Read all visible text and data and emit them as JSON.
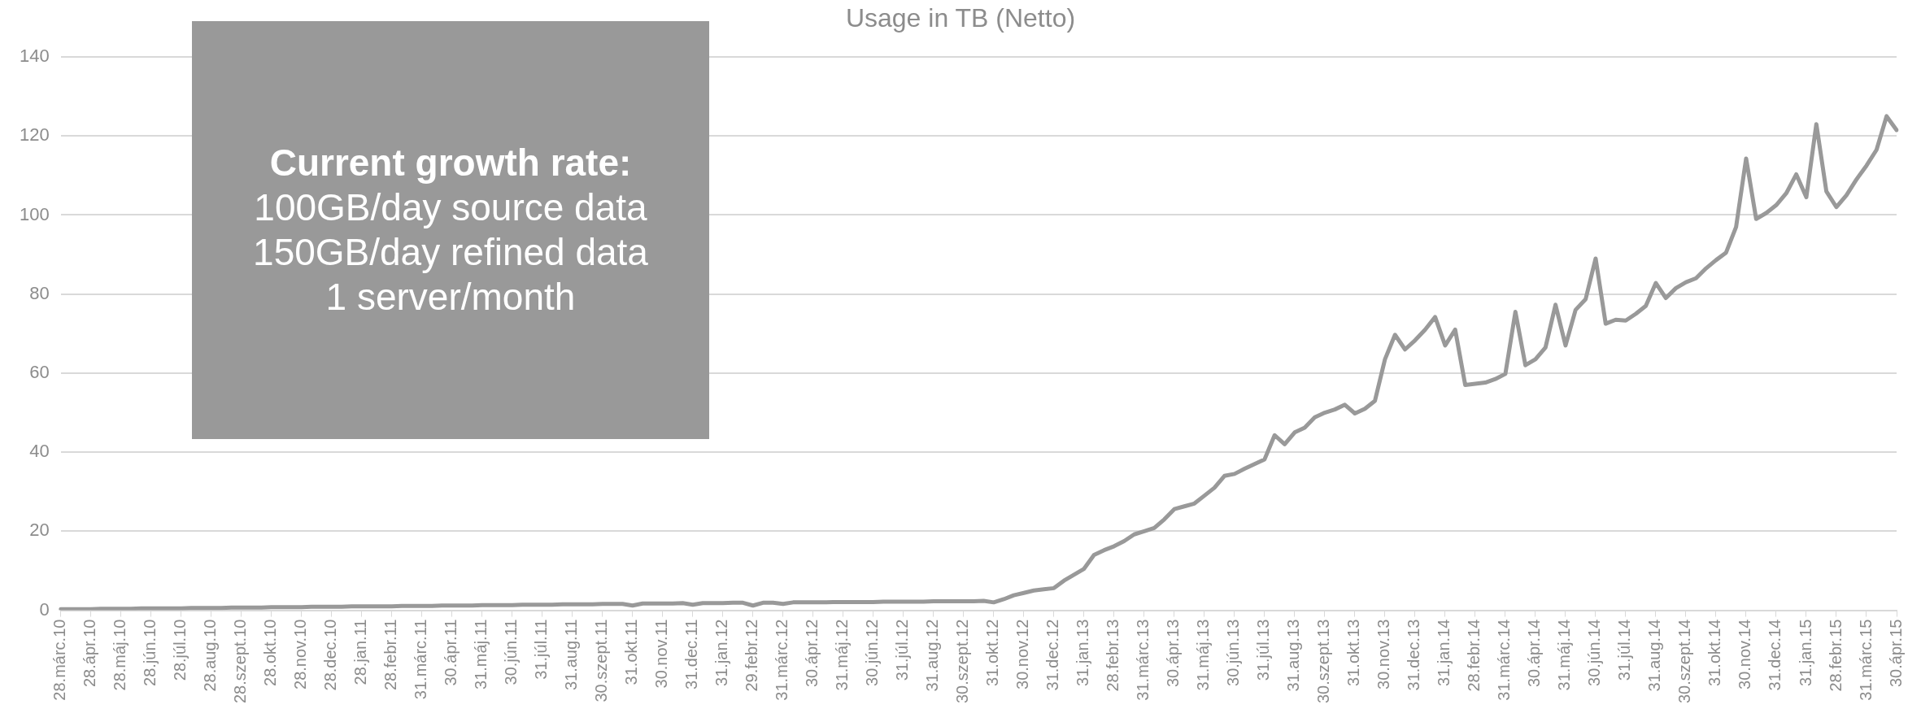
{
  "chart_data": {
    "type": "line",
    "title": "Usage in TB (Netto)",
    "categories": [
      "28.márc.10",
      null,
      null,
      "28.ápr.10",
      null,
      null,
      "28.máj.10",
      null,
      null,
      "28.jún.10",
      null,
      null,
      "28.júl.10",
      null,
      null,
      "28.aug.10",
      null,
      null,
      "28.szept.10",
      null,
      null,
      "28.okt.10",
      null,
      null,
      "28.nov.10",
      null,
      null,
      "28.dec.10",
      null,
      null,
      "28.jan.11",
      null,
      null,
      "28.febr.11",
      null,
      null,
      "31.márc.11",
      null,
      null,
      "30.ápr.11",
      null,
      null,
      "31.máj.11",
      null,
      null,
      "30.jún.11",
      null,
      null,
      "31.júl.11",
      null,
      null,
      "31.aug.11",
      null,
      null,
      "30.szept.11",
      null,
      null,
      "31.okt.11",
      null,
      null,
      "30.nov.11",
      null,
      null,
      "31.dec.11",
      null,
      null,
      "31.jan.12",
      null,
      null,
      "29.febr.12",
      null,
      null,
      "31.márc.12",
      null,
      null,
      "30.ápr.12",
      null,
      null,
      "31.máj.12",
      null,
      null,
      "30.jún.12",
      null,
      null,
      "31.júl.12",
      null,
      null,
      "31.aug.12",
      null,
      null,
      "30.szept.12",
      null,
      null,
      "31.okt.12",
      null,
      null,
      "30.nov.12",
      null,
      null,
      "31.dec.12",
      null,
      null,
      "31.jan.13",
      null,
      null,
      "28.febr.13",
      null,
      null,
      "31.márc.13",
      null,
      null,
      "30.ápr.13",
      null,
      null,
      "31.máj.13",
      null,
      null,
      "30.jún.13",
      null,
      null,
      "31.júl.13",
      null,
      null,
      "31.aug.13",
      null,
      null,
      "30.szept.13",
      null,
      null,
      "31.okt.13",
      null,
      null,
      "30.nov.13",
      null,
      null,
      "31.dec.13",
      null,
      null,
      "31.jan.14",
      null,
      null,
      "28.febr.14",
      null,
      null,
      "31.márc.14",
      null,
      null,
      "30.ápr.14",
      null,
      null,
      "31.máj.14",
      null,
      null,
      "30.jún.14",
      null,
      null,
      "31.júl.14",
      null,
      null,
      "31.aug.14",
      null,
      null,
      "30.szept.14",
      null,
      null,
      "31.okt.14",
      null,
      null,
      "30.nov.14",
      null,
      null,
      "31.dec.14",
      null,
      null,
      "31.jan.15",
      null,
      null,
      "28.febr.15",
      null,
      null,
      "31.márc.15",
      null,
      null,
      "30.ápr.15"
    ],
    "series": [
      {
        "color": "#999999",
        "values": [
          0.3,
          0.3,
          0.3,
          0.3,
          0.4,
          0.4,
          0.4,
          0.4,
          0.5,
          0.5,
          0.5,
          0.5,
          0.5,
          0.6,
          0.6,
          0.6,
          0.6,
          0.7,
          0.7,
          0.7,
          0.7,
          0.8,
          0.8,
          0.8,
          0.8,
          0.9,
          0.9,
          0.9,
          0.9,
          1.0,
          1.0,
          1.0,
          1.0,
          1.0,
          1.1,
          1.1,
          1.1,
          1.1,
          1.2,
          1.2,
          1.2,
          1.2,
          1.3,
          1.3,
          1.3,
          1.3,
          1.4,
          1.4,
          1.4,
          1.4,
          1.5,
          1.5,
          1.5,
          1.5,
          1.6,
          1.6,
          1.6,
          1.2,
          1.7,
          1.7,
          1.7,
          1.7,
          1.8,
          1.4,
          1.8,
          1.8,
          1.8,
          1.9,
          1.9,
          1.2,
          1.9,
          1.9,
          1.6,
          2.0,
          2.0,
          2.0,
          2.0,
          2.1,
          2.1,
          2.1,
          2.1,
          2.1,
          2.2,
          2.2,
          2.2,
          2.2,
          2.2,
          2.3,
          2.3,
          2.3,
          2.3,
          2.3,
          2.4,
          2.0,
          2.8,
          3.8,
          4.4,
          5.0,
          5.3,
          5.6,
          7.5,
          9.0,
          10.5,
          14,
          15.2,
          16.2,
          17.5,
          19.2,
          20,
          20.8,
          23,
          25.6,
          26.3,
          27,
          29,
          31,
          34,
          34.5,
          35.8,
          37,
          38.2,
          44.3,
          42,
          45,
          46.2,
          48.8,
          50,
          50.8,
          52,
          49.8,
          51,
          53,
          63.5,
          69.7,
          66,
          68.3,
          71,
          74.2,
          67,
          71,
          57,
          57.3,
          57.6,
          58.5,
          59.8,
          75.5,
          62,
          63.5,
          66.5,
          77.3,
          67,
          76,
          78.7,
          89,
          72.5,
          73.5,
          73.3,
          75,
          77,
          82.8,
          79,
          81.5,
          83,
          84,
          86.5,
          88.6,
          90.5,
          97,
          114.3,
          99,
          100.5,
          102.5,
          105.5,
          110.3,
          104.5,
          123,
          106,
          102,
          105,
          109,
          112.5,
          116.5,
          125,
          121.5
        ]
      }
    ],
    "ylim": [
      0,
      140
    ],
    "yticks": [
      0,
      20,
      40,
      60,
      80,
      100,
      120,
      140
    ],
    "grid": "y",
    "legend": false,
    "marker": "none",
    "line_style": "solid",
    "annotations": [
      "Current growth rate:\n100GB/day source data\n150GB/day refined data\n1 server/month"
    ]
  }
}
